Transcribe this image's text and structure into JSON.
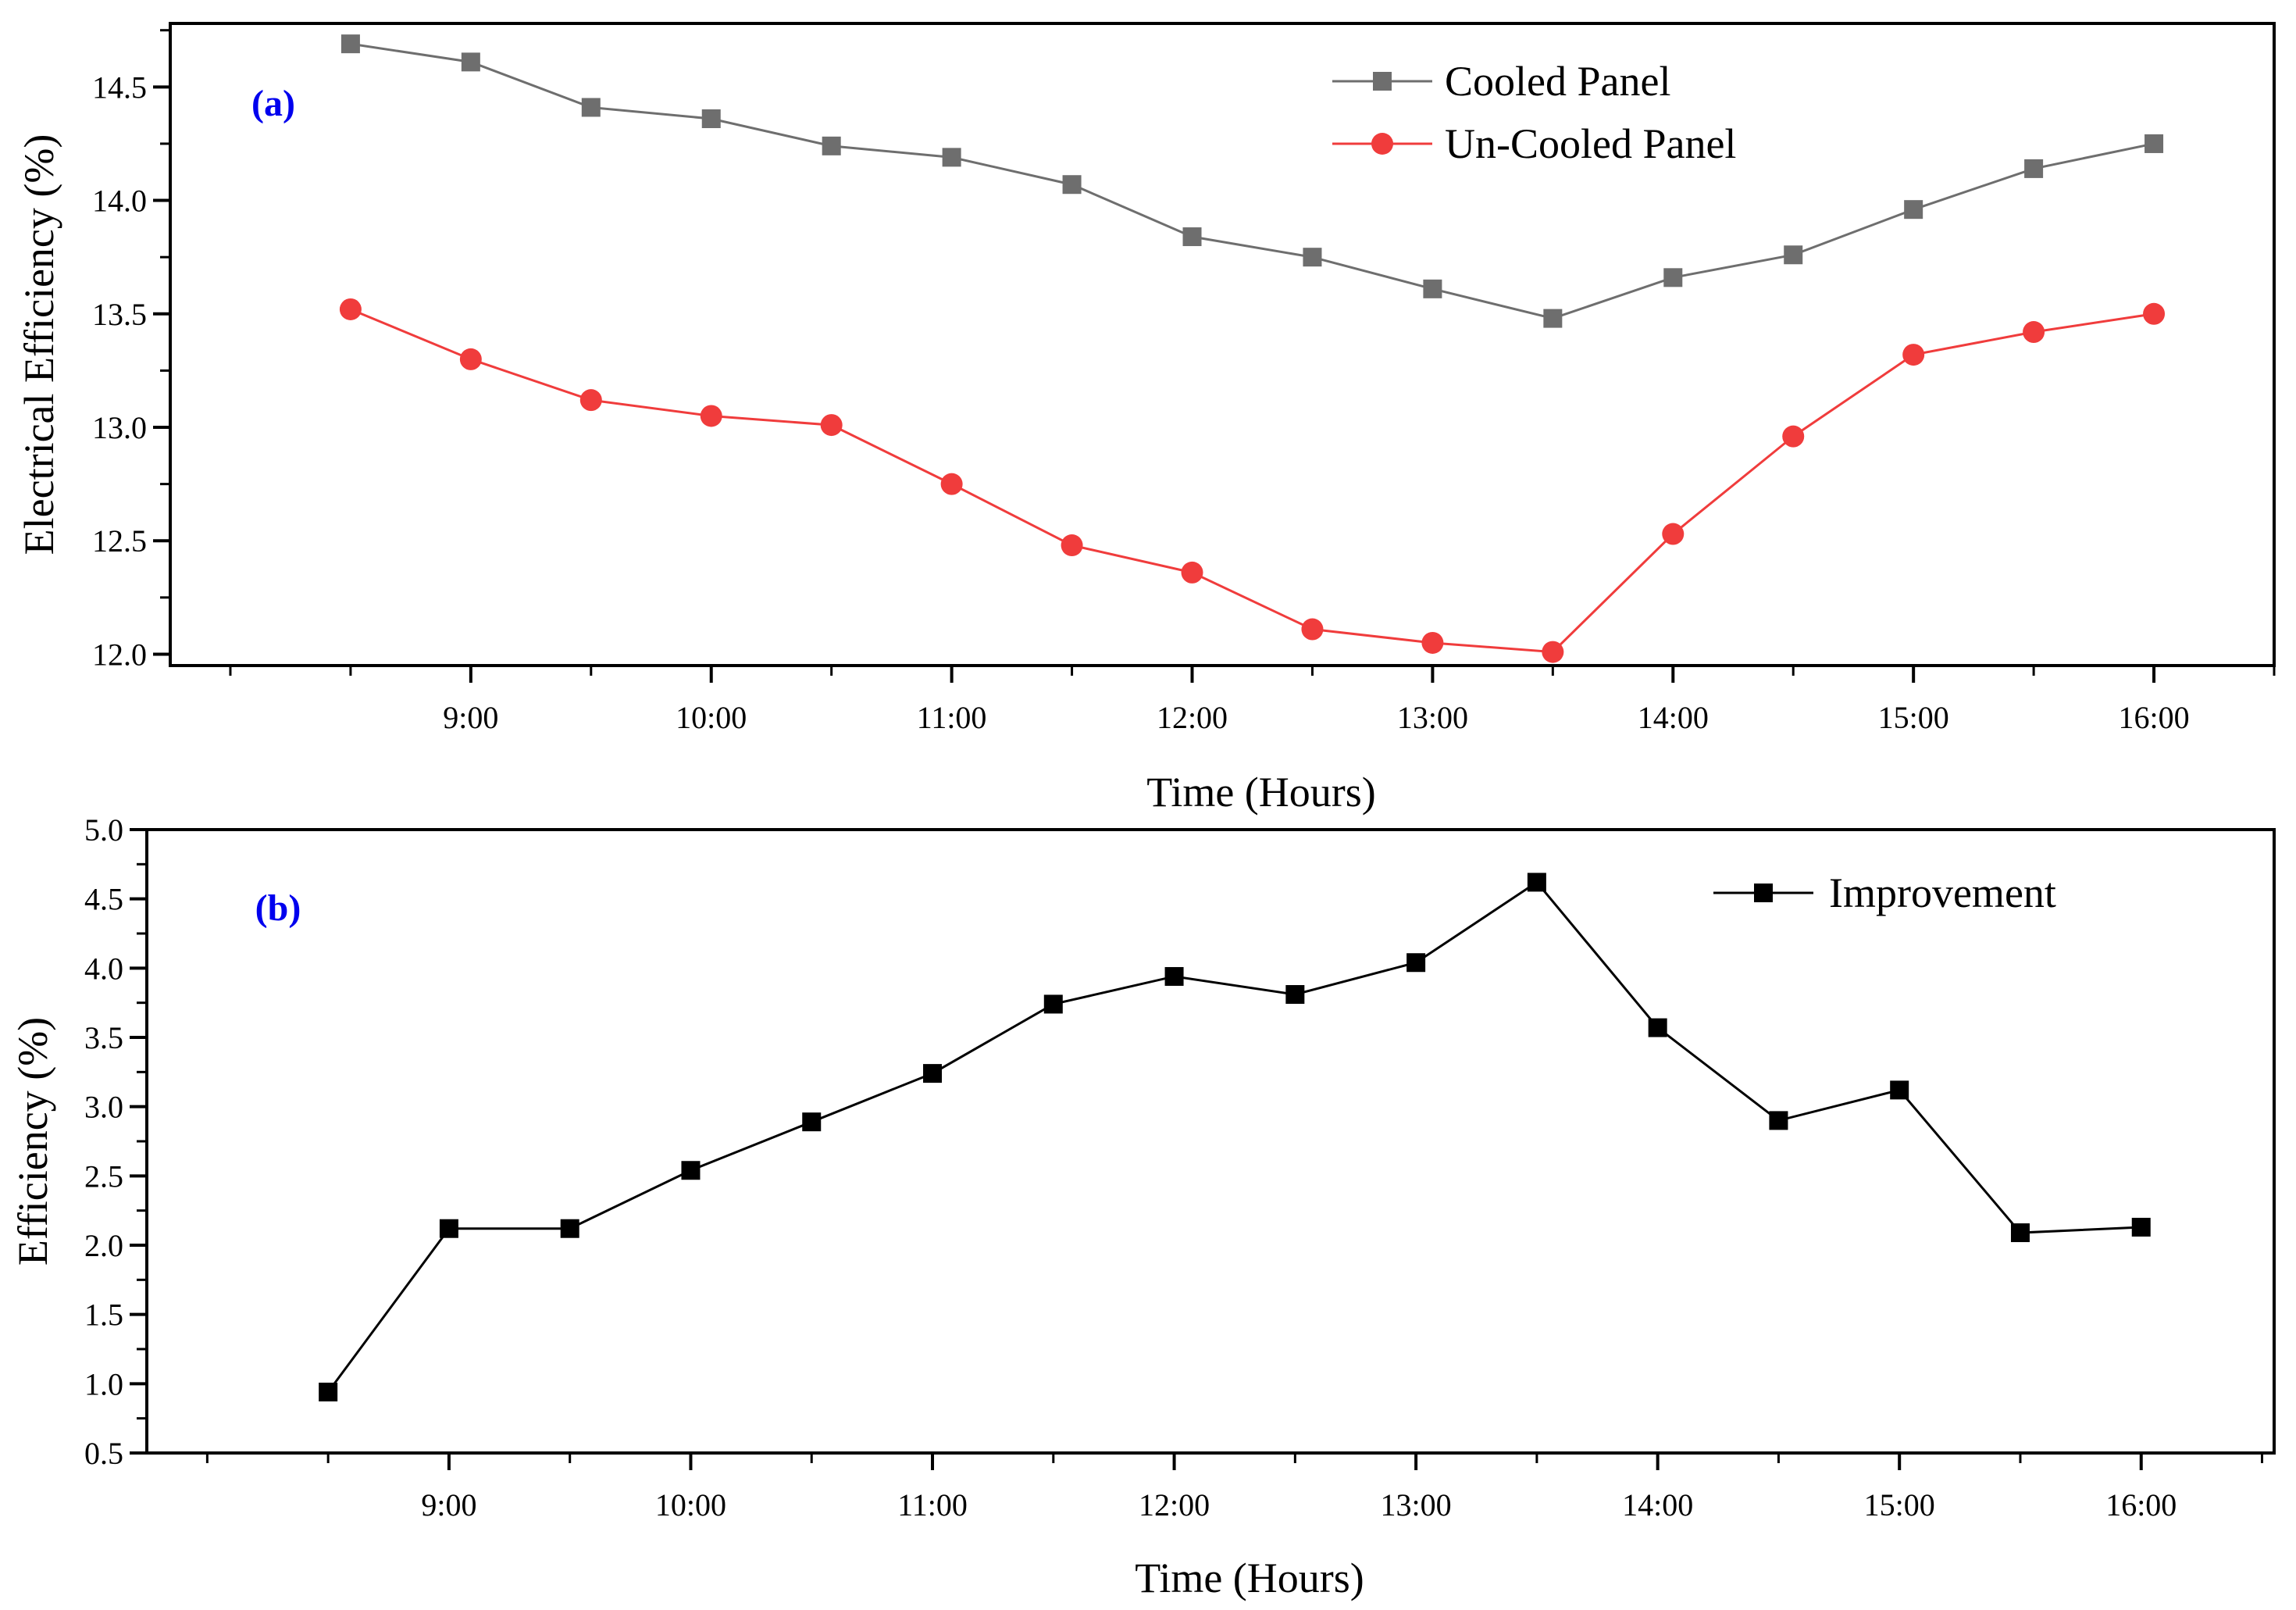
{
  "chart_data": [
    {
      "type": "line",
      "panel_label": "(a)",
      "xlabel": "Time (Hours)",
      "ylabel": "Electrical Efficiency (%)",
      "x": [
        8.5,
        9,
        9.5,
        10,
        10.5,
        11,
        11.5,
        12,
        12.5,
        13,
        13.5,
        14,
        14.5,
        15,
        15.5,
        16
      ],
      "xlim": [
        7.75,
        16.5
      ],
      "ylim": [
        11.95,
        14.78
      ],
      "x_ticks": [
        {
          "value": 9,
          "label": "9:00"
        },
        {
          "value": 10,
          "label": "10:00"
        },
        {
          "value": 11,
          "label": "11:00"
        },
        {
          "value": 12,
          "label": "12:00"
        },
        {
          "value": 13,
          "label": "13:00"
        },
        {
          "value": 14,
          "label": "14:00"
        },
        {
          "value": 15,
          "label": "15:00"
        },
        {
          "value": 16,
          "label": "16:00"
        }
      ],
      "x_minor_ticks": [
        8,
        8.5,
        9.5,
        10.5,
        11.5,
        12.5,
        13.5,
        14.5,
        15.5,
        16.5
      ],
      "y_ticks": [
        {
          "value": 12.0,
          "label": "12.0"
        },
        {
          "value": 12.5,
          "label": "12.5"
        },
        {
          "value": 13.0,
          "label": "13.0"
        },
        {
          "value": 13.5,
          "label": "13.5"
        },
        {
          "value": 14.0,
          "label": "14.0"
        },
        {
          "value": 14.5,
          "label": "14.5"
        }
      ],
      "y_minor_ticks": [
        12.25,
        12.75,
        13.25,
        13.75,
        14.25,
        14.75
      ],
      "legend_position": "top-right",
      "series": [
        {
          "name": "Cooled Panel",
          "color": "#6e6e6e",
          "marker": "square",
          "values": [
            14.69,
            14.61,
            14.41,
            14.36,
            14.24,
            14.19,
            14.07,
            13.84,
            13.75,
            13.61,
            13.48,
            13.66,
            13.76,
            13.96,
            14.14,
            14.25
          ]
        },
        {
          "name": "Un-Cooled Panel",
          "color": "#f03c3c",
          "marker": "circle",
          "values": [
            13.52,
            13.3,
            13.12,
            13.05,
            13.01,
            12.75,
            12.48,
            12.36,
            12.11,
            12.05,
            12.01,
            12.53,
            12.96,
            13.32,
            13.42,
            13.5
          ]
        }
      ]
    },
    {
      "type": "line",
      "panel_label": "(b)",
      "xlabel": "Time (Hours)",
      "ylabel": "Efficiency (%)",
      "x": [
        8.5,
        9,
        9.5,
        10,
        10.5,
        11,
        11.5,
        12,
        12.5,
        13,
        13.5,
        14,
        14.5,
        15,
        15.5,
        16
      ],
      "xlim": [
        7.75,
        16.55
      ],
      "ylim": [
        0.5,
        5.0
      ],
      "x_ticks": [
        {
          "value": 9,
          "label": "9:00"
        },
        {
          "value": 10,
          "label": "10:00"
        },
        {
          "value": 11,
          "label": "11:00"
        },
        {
          "value": 12,
          "label": "12:00"
        },
        {
          "value": 13,
          "label": "13:00"
        },
        {
          "value": 14,
          "label": "14:00"
        },
        {
          "value": 15,
          "label": "15:00"
        },
        {
          "value": 16,
          "label": "16:00"
        }
      ],
      "x_minor_ticks": [
        8,
        8.5,
        9.5,
        10.5,
        11.5,
        12.5,
        13.5,
        14.5,
        15.5,
        16.5
      ],
      "y_ticks": [
        {
          "value": 0.5,
          "label": "0.5"
        },
        {
          "value": 1.0,
          "label": "1.0"
        },
        {
          "value": 1.5,
          "label": "1.5"
        },
        {
          "value": 2.0,
          "label": "2.0"
        },
        {
          "value": 2.5,
          "label": "2.5"
        },
        {
          "value": 3.0,
          "label": "3.0"
        },
        {
          "value": 3.5,
          "label": "3.5"
        },
        {
          "value": 4.0,
          "label": "4.0"
        },
        {
          "value": 4.5,
          "label": "4.5"
        },
        {
          "value": 5.0,
          "label": "5.0"
        }
      ],
      "y_minor_ticks": [
        0.75,
        1.25,
        1.75,
        2.25,
        2.75,
        3.25,
        3.75,
        4.25,
        4.75
      ],
      "legend_position": "top-right",
      "series": [
        {
          "name": "Improvement",
          "color": "#000000",
          "marker": "square",
          "values": [
            0.94,
            2.12,
            2.12,
            2.54,
            2.89,
            3.24,
            3.74,
            3.94,
            3.81,
            4.04,
            4.62,
            3.57,
            2.9,
            3.12,
            2.09,
            2.13
          ]
        }
      ]
    }
  ]
}
